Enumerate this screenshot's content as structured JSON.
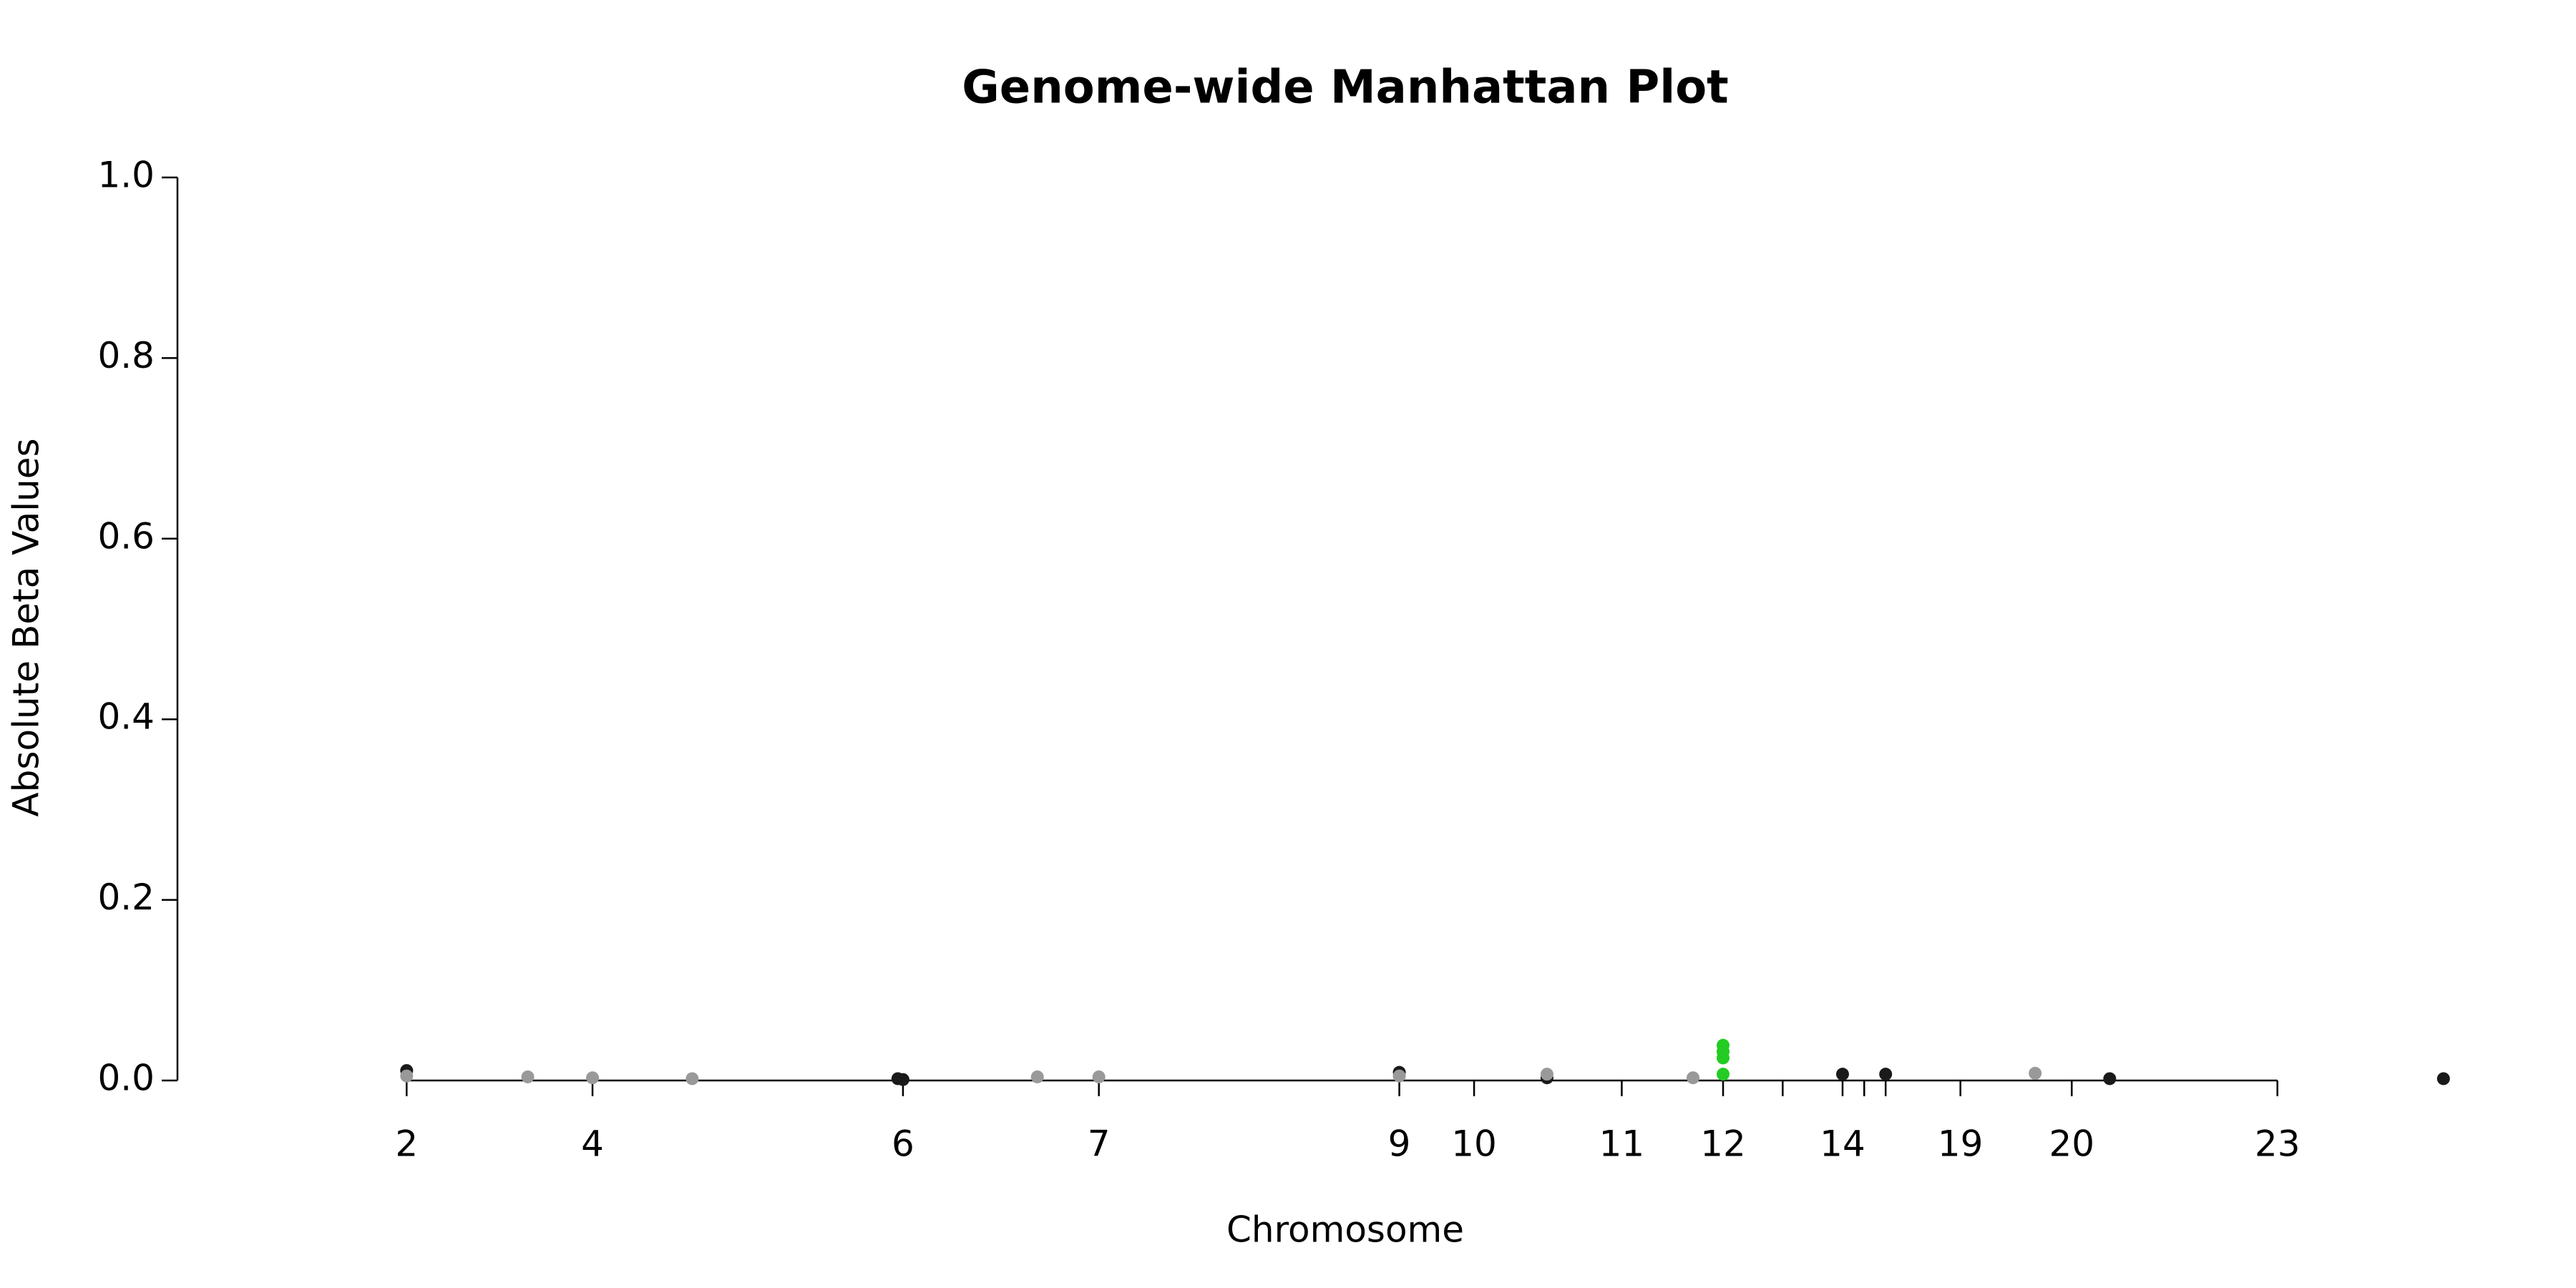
{
  "chart_data": {
    "type": "scatter",
    "title": "Genome-wide Manhattan Plot",
    "x_label": "Chromosome",
    "y_label": "Absolute Beta Values",
    "xlim": [
      0,
      100
    ],
    "ylim": [
      0,
      1
    ],
    "xticks": [
      {
        "value": 9.84,
        "label": "2"
      },
      {
        "value": 17.82,
        "label": "4"
      },
      {
        "value": 31.15,
        "label": "6"
      },
      {
        "value": 39.56,
        "label": "7"
      },
      {
        "value": 52.46,
        "label": "9"
      },
      {
        "value": 55.67,
        "label": "10"
      },
      {
        "value": 62.01,
        "label": "11"
      },
      {
        "value": 66.36,
        "label": "12"
      },
      {
        "value": 68.92,
        "label": null
      },
      {
        "value": 71.49,
        "label": "14"
      },
      {
        "value": 72.42,
        "label": null
      },
      {
        "value": 73.34,
        "label": null
      },
      {
        "value": 76.55,
        "label": "19"
      },
      {
        "value": 81.33,
        "label": "20"
      },
      {
        "value": 90.16,
        "label": "23"
      }
    ],
    "yticks": [
      {
        "value": 0,
        "label": "0.0"
      },
      0.2,
      0.4,
      0.6,
      0.8,
      {
        "value": 1,
        "label": "1.0"
      }
    ],
    "series": [
      {
        "color": "#1a1a1a",
        "x": [
          9.84,
          30.93,
          31.15,
          52.46,
          58.8,
          71.49,
          73.34,
          82.96,
          97.29
        ],
        "values": [
          0.011,
          0.002,
          0.001,
          0.009,
          0.003,
          0.007,
          0.007,
          0.002,
          0.002
        ]
      },
      {
        "color": "#999999",
        "x": [
          9.84,
          15.04,
          17.82,
          22.1,
          36.92,
          39.56,
          52.46,
          58.8,
          65.07,
          79.76
        ],
        "values": [
          0.005,
          0.004,
          0.003,
          0.002,
          0.004,
          0.004,
          0.005,
          0.007,
          0.003,
          0.008
        ]
      },
      {
        "color": "#22cc22",
        "x": [
          66.36,
          66.36,
          66.36,
          66.36
        ],
        "values": [
          0.039,
          0.032,
          0.025,
          0.007
        ]
      }
    ]
  }
}
